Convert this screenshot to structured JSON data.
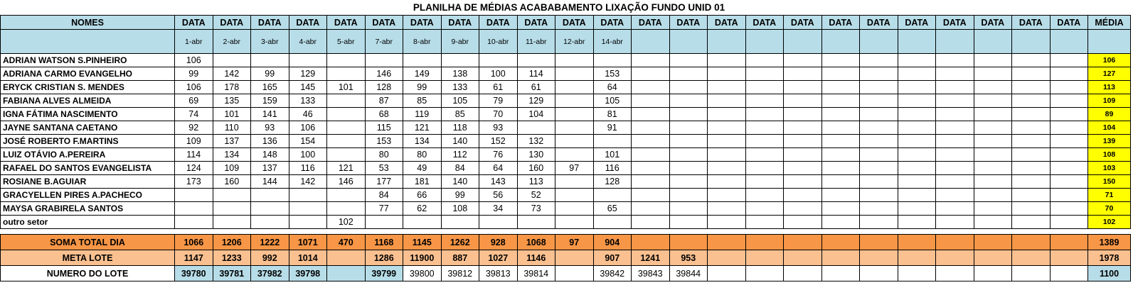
{
  "title": "PLANILHA DE MÉDIAS ACABABAMENTO LIXAÇÃO FUNDO UNID 01",
  "header": {
    "names": "NOMES",
    "data_label": "DATA",
    "media": "MÉDIA",
    "dates": [
      "1-abr",
      "2-abr",
      "3-abr",
      "4-abr",
      "5-abr",
      "7-abr",
      "8-abr",
      "9-abr",
      "10-abr",
      "11-abr",
      "12-abr",
      "14-abr",
      "",
      "",
      "",
      "",
      "",
      "",
      "",
      "",
      "",
      "",
      "",
      ""
    ]
  },
  "rows": [
    {
      "name": "ADRIAN WATSON S.PINHEIRO",
      "values": [
        "106",
        "",
        "",
        "",
        "",
        "",
        "",
        "",
        "",
        "",
        "",
        ""
      ],
      "avg": "106"
    },
    {
      "name": "ADRIANA CARMO EVANGELHO",
      "values": [
        "99",
        "142",
        "99",
        "129",
        "",
        "146",
        "149",
        "138",
        "100",
        "114",
        "",
        "153"
      ],
      "avg": "127"
    },
    {
      "name": "ERYCK CRISTIAN S. MENDES",
      "values": [
        "106",
        "178",
        "165",
        "145",
        "101",
        "128",
        "99",
        "133",
        "61",
        "61",
        "",
        "64"
      ],
      "avg": "113"
    },
    {
      "name": "FABIANA ALVES ALMEIDA",
      "values": [
        "69",
        "135",
        "159",
        "133",
        "",
        "87",
        "85",
        "105",
        "79",
        "129",
        "",
        "105"
      ],
      "avg": "109"
    },
    {
      "name": "IGNA FÁTIMA NASCIMENTO",
      "values": [
        "74",
        "101",
        "141",
        "46",
        "",
        "68",
        "119",
        "85",
        "70",
        "104",
        "",
        "81"
      ],
      "avg": "89"
    },
    {
      "name": "JAYNE SANTANA CAETANO",
      "values": [
        "92",
        "110",
        "93",
        "106",
        "",
        "115",
        "121",
        "118",
        "93",
        "",
        "",
        "91"
      ],
      "avg": "104"
    },
    {
      "name": "JOSÉ ROBERTO F.MARTINS",
      "values": [
        "109",
        "137",
        "136",
        "154",
        "",
        "153",
        "134",
        "140",
        "152",
        "132",
        "",
        ""
      ],
      "avg": "139"
    },
    {
      "name": "LUIZ OTÁVIO A.PEREIRA",
      "values": [
        "114",
        "134",
        "148",
        "100",
        "",
        "80",
        "80",
        "112",
        "76",
        "130",
        "",
        "101"
      ],
      "avg": "108"
    },
    {
      "name": "RAFAEL DO SANTOS EVANGELISTA",
      "values": [
        "124",
        "109",
        "137",
        "116",
        "121",
        "53",
        "49",
        "84",
        "64",
        "160",
        "97",
        "116"
      ],
      "avg": "103"
    },
    {
      "name": "ROSIANE B.AGUIAR",
      "values": [
        "173",
        "160",
        "144",
        "142",
        "146",
        "177",
        "181",
        "140",
        "143",
        "113",
        "",
        "128"
      ],
      "avg": "150"
    },
    {
      "name": "GRACYELLEN PIRES A.PACHECO",
      "values": [
        "",
        "",
        "",
        "",
        "",
        "84",
        "66",
        "99",
        "56",
        "52",
        "",
        ""
      ],
      "avg": "71"
    },
    {
      "name": "MAYSA GRABIRELA SANTOS",
      "values": [
        "",
        "",
        "",
        "",
        "",
        "77",
        "62",
        "108",
        "34",
        "73",
        "",
        "65"
      ],
      "avg": "70"
    },
    {
      "name": "outro setor",
      "values": [
        "",
        "",
        "",
        "",
        "102",
        "",
        "",
        "",
        "",
        "",
        "",
        ""
      ],
      "avg": "102"
    }
  ],
  "soma": {
    "label": "SOMA TOTAL DIA",
    "values": [
      "1066",
      "1206",
      "1222",
      "1071",
      "470",
      "1168",
      "1145",
      "1262",
      "928",
      "1068",
      "97",
      "904"
    ],
    "avg": "1389"
  },
  "meta": {
    "label": "META LOTE",
    "values": [
      "1147",
      "1233",
      "992",
      "1014",
      "",
      "1286",
      "11900",
      "887",
      "1027",
      "1146",
      "",
      "907",
      "1241",
      "953"
    ],
    "avg": "1978"
  },
  "lote": {
    "label": "NUMERO DO LOTE",
    "values": [
      "39780",
      "39781",
      "37982",
      "39798",
      "",
      "39799",
      "39800",
      "39812",
      "39813",
      "39814",
      "",
      "39842",
      "39843",
      "39844"
    ],
    "avg": "1100"
  },
  "colors": {
    "header_blue": "#b7dde8",
    "average_yellow": "#ffff00",
    "soma_orange": "#f79646",
    "meta_orange": "#fac090"
  }
}
